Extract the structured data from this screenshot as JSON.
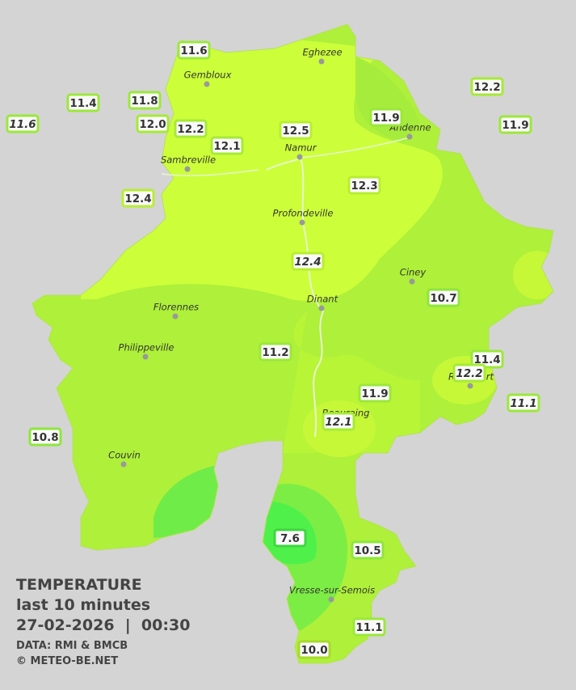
{
  "map": {
    "towns": [
      "Eghezee",
      "Gembloux",
      "Andenne",
      "Namur",
      "Sambreville",
      "Profondeville",
      "Ciney",
      "Dinant",
      "Florennes",
      "Philippeville",
      "Rochefort",
      "Beauraing",
      "Couvin",
      "Vresse-sur-Semois"
    ],
    "stations": [
      {
        "label": "11.6",
        "italic": false,
        "color": "#9be83a"
      },
      {
        "label": "11.4",
        "italic": false,
        "color": "#9be83a"
      },
      {
        "label": "11.8",
        "italic": false,
        "color": "#9be83a"
      },
      {
        "label": "11.6",
        "italic": true,
        "color": "#9be83a"
      },
      {
        "label": "12.0",
        "italic": false,
        "color": "#a6ea36"
      },
      {
        "label": "12.2",
        "italic": false,
        "color": "#a6ea36"
      },
      {
        "label": "12.1",
        "italic": false,
        "color": "#a6ea36"
      },
      {
        "label": "12.5",
        "italic": false,
        "color": "#b8ee30"
      },
      {
        "label": "11.9",
        "italic": false,
        "color": "#9be83a"
      },
      {
        "label": "12.2",
        "italic": false,
        "color": "#a6ea36"
      },
      {
        "label": "11.9",
        "italic": false,
        "color": "#9be83a"
      },
      {
        "label": "12.3",
        "italic": false,
        "color": "#b8ee30"
      },
      {
        "label": "12.4",
        "italic": false,
        "color": "#b8ee30"
      },
      {
        "label": "12.4",
        "italic": true,
        "color": "#b8ee30"
      },
      {
        "label": "10.7",
        "italic": false,
        "color": "#8ee63c"
      },
      {
        "label": "11.2",
        "italic": false,
        "color": "#9be83a"
      },
      {
        "label": "11.4",
        "italic": false,
        "color": "#9be83a"
      },
      {
        "label": "12.2",
        "italic": true,
        "color": "#a6ea36"
      },
      {
        "label": "11.9",
        "italic": false,
        "color": "#9be83a"
      },
      {
        "label": "11.1",
        "italic": true,
        "color": "#9be83a"
      },
      {
        "label": "12.1",
        "italic": true,
        "color": "#a6ea36"
      },
      {
        "label": "10.8",
        "italic": false,
        "color": "#8ee63c"
      },
      {
        "label": "7.6",
        "italic": false,
        "color": "#3fd63f"
      },
      {
        "label": "10.5",
        "italic": false,
        "color": "#8ee63c"
      },
      {
        "label": "11.1",
        "italic": false,
        "color": "#9be83a"
      },
      {
        "label": "10.0",
        "italic": false,
        "color": "#a8d92a"
      }
    ]
  },
  "legend": {
    "title": "TEMPERATURE",
    "subtitle": "last 10 minutes",
    "datetime": "27-02-2026  |  00:30",
    "source": "DATA: RMI & BMCB",
    "credit": "© METEO-BE.NET"
  }
}
